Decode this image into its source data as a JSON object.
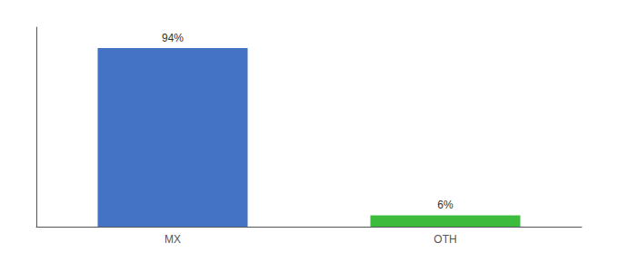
{
  "chart_data": {
    "type": "bar",
    "categories": [
      "MX",
      "OTH"
    ],
    "values": [
      94,
      6
    ],
    "value_labels": [
      "94%",
      "6%"
    ],
    "colors": [
      "#4472c4",
      "#3dbb3d"
    ],
    "ylim": [
      0,
      105
    ],
    "grid": false,
    "data_labels": true,
    "tick_labels": "x"
  }
}
